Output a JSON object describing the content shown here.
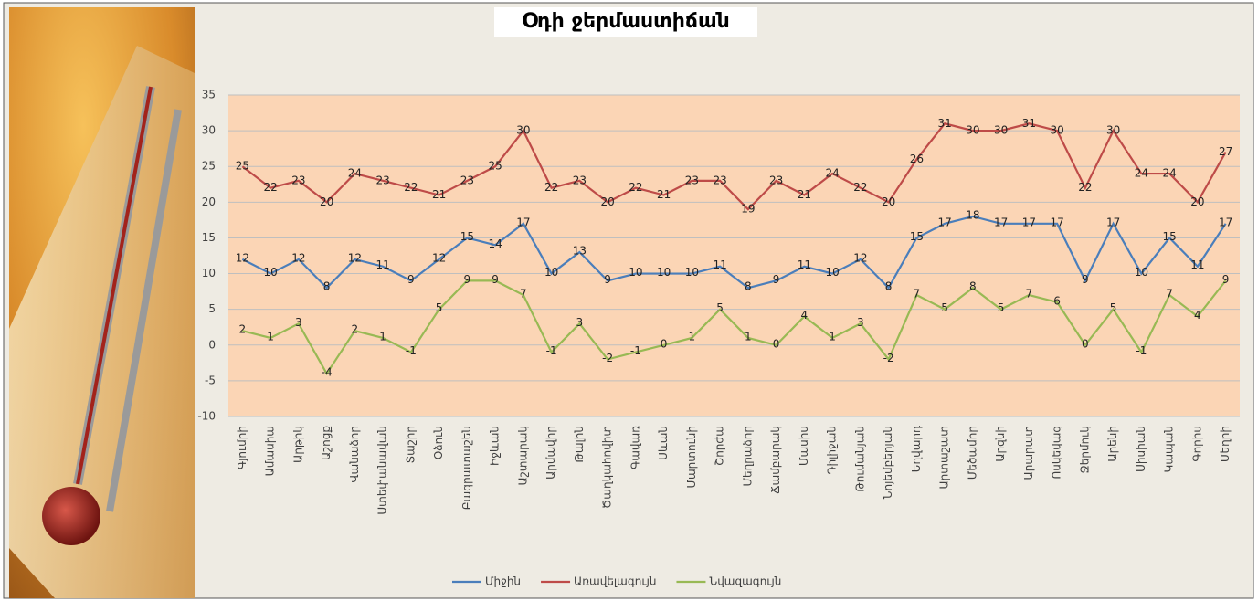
{
  "chart_data": {
    "type": "line",
    "title": "Օդի ջերմաստիճան",
    "categories": [
      "Գյումրի",
      "Ամասիա",
      "Արթիկ",
      "Աշոցք",
      "Վանաձոր",
      "Ստեփանավան",
      "Տաշիր",
      "Օձուն",
      "Բագրատաշեն",
      "Իջևան",
      "Աշտարակ",
      "Արմավիր",
      "Թալին",
      "Ծաղկահովիտ",
      "Գավառ",
      "Սևան",
      "Մարտունի",
      "Շորժա",
      "Մեղրաձոր",
      "Ճամբարակ",
      "Մասիս",
      "Դիլիջան",
      "Թումանյան",
      "Նոյեմբերյան",
      "Եղվարդ",
      "Արտաշատ",
      "Մեծամոր",
      "Արզնի",
      "Արարատ",
      "Ոսկեվազ",
      "Ջերմուկ",
      "Արենի",
      "Սիսիան",
      "Կապան",
      "Գորիս",
      "Մեղրի"
    ],
    "series": [
      {
        "name": "Միջին",
        "color": "#4a7ebb",
        "values": [
          12,
          10,
          12,
          8,
          12,
          11,
          9,
          12,
          15,
          14,
          17,
          10,
          13,
          9,
          10,
          10,
          10,
          11,
          8,
          9,
          11,
          10,
          12,
          8,
          15,
          17,
          18,
          17,
          17,
          17,
          9,
          17,
          10,
          15,
          11,
          17
        ]
      },
      {
        "name": "Առավելագույն",
        "color": "#be4b48",
        "values": [
          25,
          22,
          23,
          20,
          24,
          23,
          22,
          21,
          23,
          25,
          30,
          22,
          23,
          20,
          22,
          21,
          23,
          23,
          19,
          23,
          21,
          24,
          22,
          20,
          26,
          31,
          30,
          30,
          31,
          30,
          22,
          30,
          24,
          24,
          20,
          27
        ]
      },
      {
        "name": "Նվազագույն",
        "color": "#98b954",
        "values": [
          2,
          1,
          3,
          -4,
          2,
          1,
          -1,
          5,
          9,
          9,
          7,
          -1,
          3,
          -2,
          -1,
          0,
          1,
          5,
          1,
          0,
          4,
          1,
          3,
          -2,
          7,
          5,
          8,
          5,
          7,
          6,
          0,
          5,
          -1,
          7,
          4,
          9
        ]
      }
    ],
    "ylim": [
      -10,
      35
    ],
    "yticks": [
      -10,
      -5,
      0,
      5,
      10,
      15,
      20,
      25,
      30,
      35
    ],
    "grid": true,
    "legend": "bottom"
  }
}
